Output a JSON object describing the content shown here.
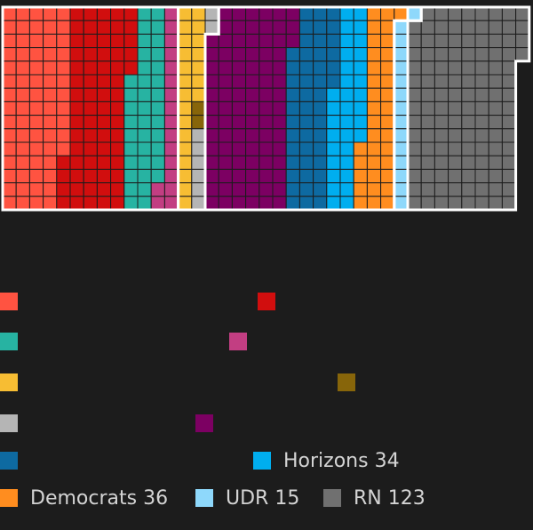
{
  "chart_data": {
    "type": "parliament-grid",
    "total_seats": 577,
    "colors": {
      "background": "#1c1c1c",
      "grid_line": "#1c1c1c",
      "bloc_border": "#ffffff"
    },
    "series": [
      {
        "key": "lfi",
        "seats": 71,
        "color": "#ff5341",
        "label": "",
        "legend_row": 0,
        "legend_col": 0
      },
      {
        "key": "soc",
        "seats": 69,
        "color": "#d10e0e",
        "label": "",
        "legend_row": 0,
        "legend_col": 1
      },
      {
        "key": "eco",
        "seats": 38,
        "color": "#27b3a2",
        "label": "",
        "legend_row": 1,
        "legend_col": 0
      },
      {
        "key": "gdr",
        "seats": 17,
        "color": "#c23e82",
        "label": "",
        "legend_row": 1,
        "legend_col": 1
      },
      {
        "key": "liot",
        "seats": 22,
        "color": "#f7bd33",
        "label": "",
        "legend_row": 2,
        "legend_col": 0
      },
      {
        "key": "dvc",
        "seats": 2,
        "color": "#87650a",
        "label": "",
        "legend_row": 2,
        "legend_col": 1
      },
      {
        "key": "ni",
        "seats": 8,
        "color": "#b5b5b5",
        "label": "",
        "legend_row": 3,
        "legend_col": 0
      },
      {
        "key": "epr",
        "seats": 91,
        "color": "#7c0062",
        "label": "",
        "legend_row": 3,
        "legend_col": 1
      },
      {
        "key": "modem",
        "seats": 48,
        "color": "#0e6aa1",
        "label": "",
        "legend_row": 4,
        "legend_col": 0
      },
      {
        "key": "hor",
        "seats": 34,
        "color": "#00aeef",
        "label": "Horizons 34",
        "legend_row": 4,
        "legend_col": 1
      },
      {
        "key": "dem",
        "seats": 36,
        "color": "#ff8d1f",
        "label": "Democrats 36",
        "legend_row": 5,
        "legend_col": 0
      },
      {
        "key": "udr",
        "seats": 15,
        "color": "#8ed8fb",
        "label": "UDR 15",
        "legend_row": 5,
        "legend_col": 1
      },
      {
        "key": "rn",
        "seats": 123,
        "color": "#707070",
        "label": "RN 123",
        "legend_row": 5,
        "legend_col": 2
      }
    ],
    "blocs": [
      {
        "key": "left",
        "members": [
          "lfi",
          "soc",
          "eco",
          "gdr"
        ]
      },
      {
        "key": "centre",
        "members": [
          "liot",
          "dvc",
          "ni"
        ]
      },
      {
        "key": "right",
        "members": [
          "epr",
          "modem",
          "hor",
          "dem"
        ]
      },
      {
        "key": "udr",
        "members": [
          "udr"
        ]
      },
      {
        "key": "rn",
        "members": [
          "rn"
        ]
      }
    ]
  }
}
